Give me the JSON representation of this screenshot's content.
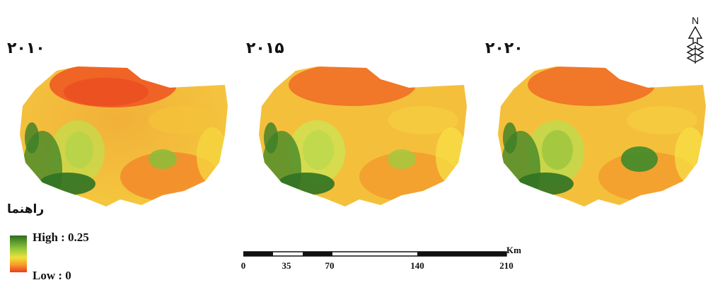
{
  "maps": [
    {
      "year": "۲۰۱۰"
    },
    {
      "year": "۲۰۱۵"
    },
    {
      "year": "۲۰۲۰"
    }
  ],
  "legend": {
    "title": "راهنما",
    "high_label": "High : 0.25",
    "low_label": "Low : 0",
    "high_color": "#2a6e1e",
    "low_color": "#ef3a1e"
  },
  "scale_bar": {
    "ticks": [
      "0",
      "35",
      "70",
      "140",
      "210"
    ],
    "unit": "Km"
  },
  "north_arrow": {
    "label": "N"
  }
}
